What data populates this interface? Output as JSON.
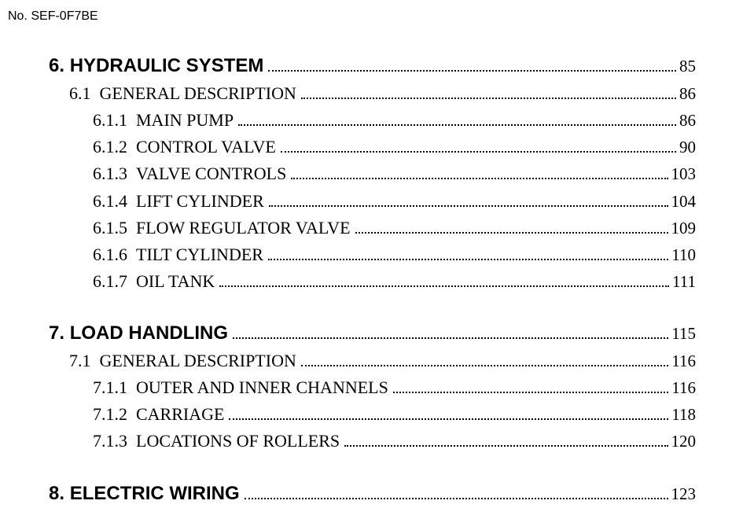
{
  "doc_number": "No. SEF-0F7BE",
  "sections": [
    {
      "title_num": "6.",
      "title": "HYDRAULIC SYSTEM",
      "page": "85",
      "items": [
        {
          "level": 1,
          "num": "6.1",
          "label": "GENERAL DESCRIPTION",
          "page": "86"
        },
        {
          "level": 2,
          "num": "6.1.1",
          "label": "MAIN PUMP",
          "page": "86"
        },
        {
          "level": 2,
          "num": "6.1.2",
          "label": "CONTROL VALVE",
          "page": "90"
        },
        {
          "level": 2,
          "num": "6.1.3",
          "label": "VALVE CONTROLS",
          "page": "103"
        },
        {
          "level": 2,
          "num": "6.1.4",
          "label": "LIFT CYLINDER",
          "page": "104"
        },
        {
          "level": 2,
          "num": "6.1.5",
          "label": "FLOW REGULATOR VALVE",
          "page": "109"
        },
        {
          "level": 2,
          "num": "6.1.6",
          "label": "TILT CYLINDER",
          "page": "110"
        },
        {
          "level": 2,
          "num": "6.1.7",
          "label": "OIL TANK",
          "page": "111"
        }
      ]
    },
    {
      "title_num": "7.",
      "title": "LOAD HANDLING",
      "page": "115",
      "items": [
        {
          "level": 1,
          "num": "7.1",
          "label": "GENERAL DESCRIPTION",
          "page": "116"
        },
        {
          "level": 2,
          "num": "7.1.1",
          "label": "OUTER AND INNER CHANNELS",
          "page": "116"
        },
        {
          "level": 2,
          "num": "7.1.2",
          "label": "CARRIAGE",
          "page": "118"
        },
        {
          "level": 2,
          "num": "7.1.3",
          "label": "LOCATIONS OF ROLLERS",
          "page": "120"
        }
      ]
    },
    {
      "title_num": "8.",
      "title": "ELECTRIC WIRING",
      "page": "123",
      "items": []
    }
  ]
}
